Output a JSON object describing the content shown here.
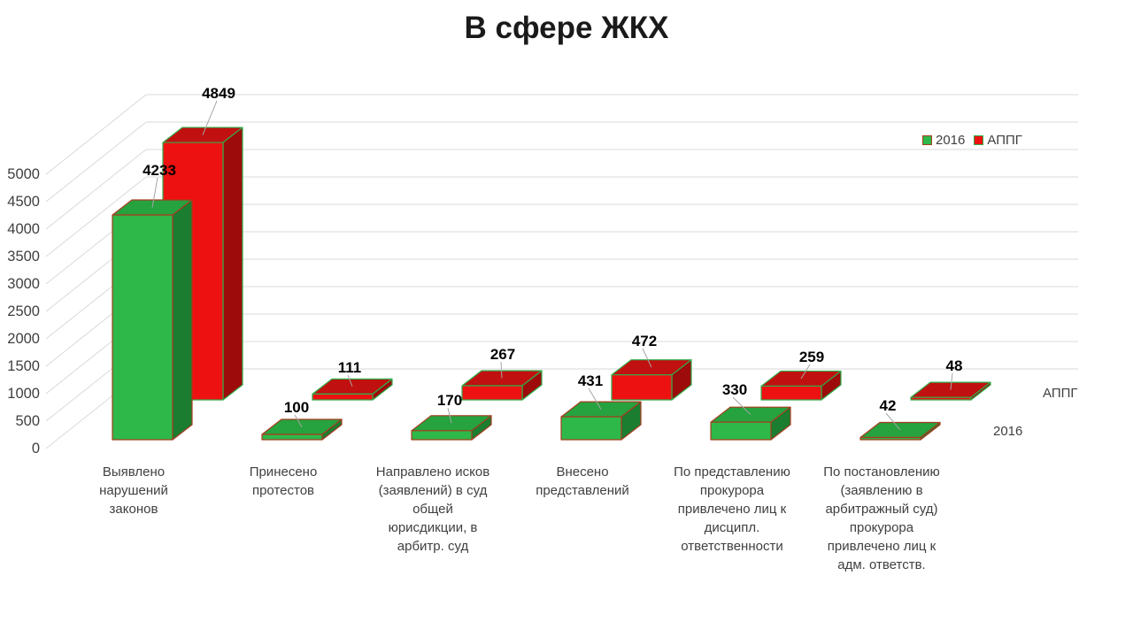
{
  "chart_data": {
    "type": "bar",
    "projection": "3d",
    "title": "В сфере ЖКХ",
    "categories": [
      "Выявлено нарушений законов",
      "Принесено протестов",
      "Направлено исков (заявлений) в суд общей юрисдикции, в арбитр. суд",
      "Внесено представлений",
      "По представлению прокурора привлечено лиц к дисципл. ответственности",
      "По постановлению (заявлению в арбитражный суд) прокурора привлечено лиц к адм. ответств."
    ],
    "category_lines": [
      [
        "Выявлено",
        "нарушений",
        "законов"
      ],
      [
        "Принесено",
        "протестов"
      ],
      [
        "Направлено исков",
        "(заявлений) в суд",
        "общей",
        "юрисдикции, в",
        "арбитр. суд"
      ],
      [
        "Внесено",
        "представлений"
      ],
      [
        "По представлению",
        "прокурора",
        "привлечено лиц к",
        "дисципл.",
        "ответственности"
      ],
      [
        "По постановлению",
        "(заявлению в",
        "арбитражный суд)",
        "прокурора",
        "привлечено лиц к",
        "адм. ответств."
      ]
    ],
    "series": [
      {
        "name": "2016",
        "values": [
          4233,
          100,
          170,
          431,
          330,
          42
        ],
        "front": "#2eb84a",
        "top": "#26a23f",
        "side": "#1b7d30",
        "stroke": "#a63c1e"
      },
      {
        "name": "АППГ",
        "values": [
          4849,
          111,
          267,
          472,
          259,
          48
        ],
        "front": "#ee1111",
        "top": "#c11010",
        "side": "#9d0b0b",
        "stroke": "#2fae4a"
      }
    ],
    "xlabel": "",
    "ylabel": "",
    "ylim": [
      0,
      5000
    ],
    "ytick_step": 500,
    "grid": true,
    "grid_color": "#d9d9d9",
    "leader_color": "#a6a6a6",
    "legend_position": "top-right"
  },
  "depth_axis_labels": {
    "back": "АППГ",
    "front": "2016"
  }
}
